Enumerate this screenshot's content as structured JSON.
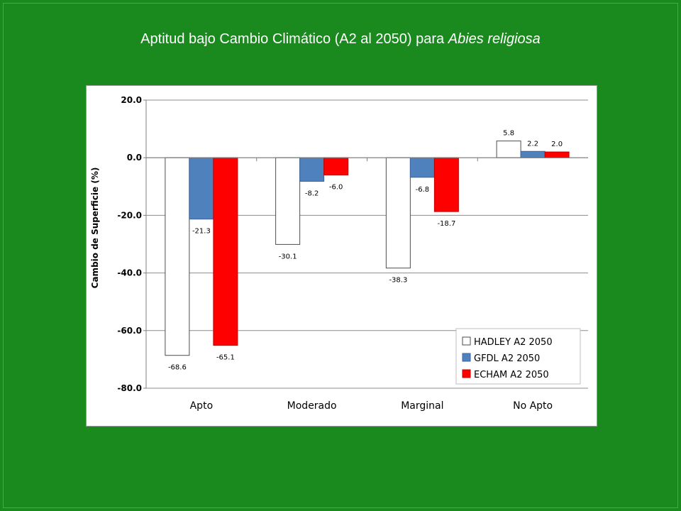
{
  "slide": {
    "title_main": "Aptitud bajo Cambio Climático (A2 al 2050) para ",
    "title_species": "Abies religiosa"
  },
  "colors": {
    "background": "#1a8a1e",
    "series": [
      "#ffffff",
      "#4f81bd",
      "#ff0000"
    ]
  },
  "chart_data": {
    "type": "bar",
    "title": "",
    "xlabel": "",
    "ylabel": "Cambio de Superficie  (%)",
    "ylim": [
      -80,
      20
    ],
    "yticks": [
      20,
      0,
      -20,
      -40,
      -60,
      -80
    ],
    "ytick_labels": [
      "20.0",
      "0.0",
      "-20.0",
      "-40.0",
      "-60.0",
      "-80.0"
    ],
    "grid": true,
    "legend_position": "bottom-right",
    "categories": [
      "Apto",
      "Moderado",
      "Marginal",
      "No Apto"
    ],
    "series": [
      {
        "name": "HADLEY A2 2050",
        "values": [
          -68.6,
          -30.1,
          -38.3,
          5.8
        ],
        "labels": [
          "-68.6",
          "-30.1",
          "-38.3",
          "5.8"
        ]
      },
      {
        "name": "GFDL A2 2050",
        "values": [
          -21.3,
          -8.2,
          -6.8,
          2.2
        ],
        "labels": [
          "-21.3",
          "-8.2",
          "-6.8",
          "2.2"
        ]
      },
      {
        "name": "ECHAM A2 2050",
        "values": [
          -65.1,
          -6.0,
          -18.7,
          2.0
        ],
        "labels": [
          "-65.1",
          "-6.0",
          "-18.7",
          "2.0"
        ]
      }
    ]
  }
}
